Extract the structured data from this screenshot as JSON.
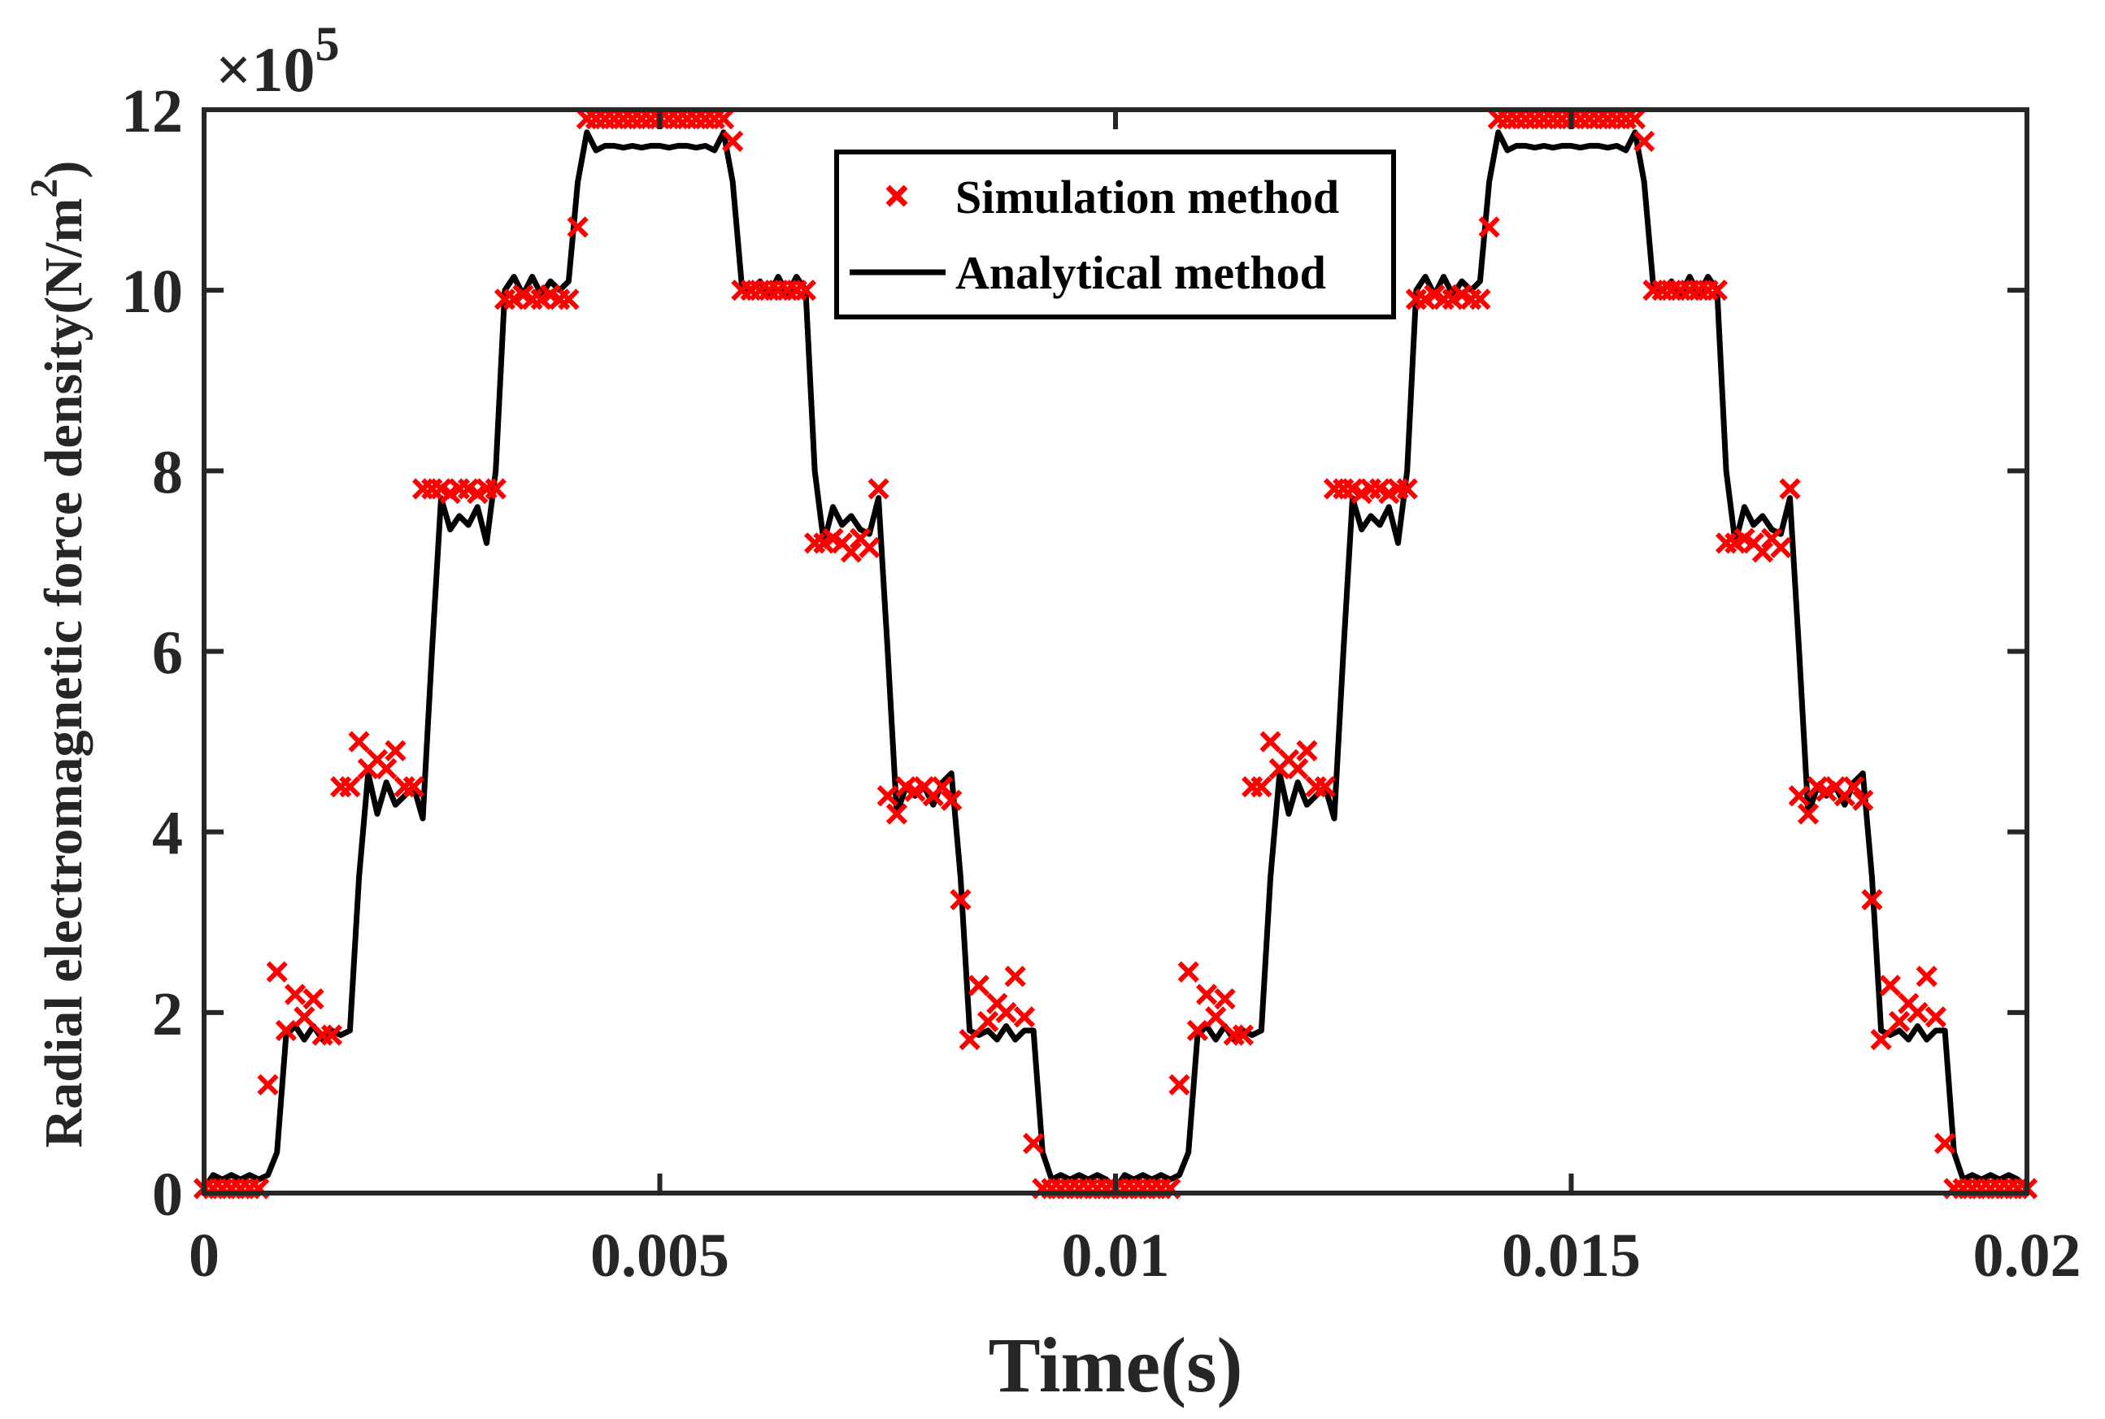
{
  "chart_data": {
    "type": "line",
    "title": "",
    "xlabel": "Time(s)",
    "ylabel": "Radial electromagnetic force density(N/m",
    "ylabel_sup": "2",
    "ylabel_close": ")",
    "y_multiplier_label": "×10",
    "y_multiplier_exp": "5",
    "xlim": [
      0,
      0.02
    ],
    "ylim": [
      0,
      12
    ],
    "x_ticks": [
      "0",
      "0.005",
      "0.01",
      "0.015",
      "0.02"
    ],
    "x_tick_values": [
      0,
      0.005,
      0.01,
      0.015,
      0.02
    ],
    "y_ticks": [
      "0",
      "2",
      "4",
      "6",
      "8",
      "10",
      "12"
    ],
    "y_tick_values": [
      0,
      2,
      4,
      6,
      8,
      10,
      12
    ],
    "grid": false,
    "legend_position": "top-center",
    "period": 0.01,
    "t_step": 0.0001,
    "series": [
      {
        "name": "Simulation method",
        "style": "x-markers",
        "color": "#ff0000",
        "period_values": [
          0.05,
          0.05,
          0.05,
          0.05,
          0.05,
          0.05,
          0.05,
          1.2,
          2.45,
          1.8,
          2.2,
          1.95,
          2.15,
          1.75,
          1.75,
          4.5,
          4.5,
          5.0,
          4.7,
          4.8,
          4.7,
          4.9,
          4.5,
          4.5,
          7.8,
          7.8,
          7.8,
          7.75,
          7.8,
          7.8,
          7.75,
          7.8,
          7.8,
          9.9,
          9.9,
          9.95,
          9.9,
          9.9,
          9.95,
          9.9,
          9.9,
          10.7,
          11.9,
          11.9,
          11.9,
          11.9,
          11.9,
          11.9,
          11.9,
          11.9,
          11.9,
          11.9,
          11.9,
          11.9,
          11.9,
          11.9,
          11.9,
          11.9,
          11.65,
          10.0,
          10.0,
          10.0,
          10.0,
          10.0,
          10.0,
          10.0,
          10.0,
          7.2,
          7.2,
          7.25,
          7.2,
          7.1,
          7.25,
          7.15,
          7.8,
          4.4,
          4.2,
          4.5,
          4.45,
          4.5,
          4.4,
          4.5,
          4.35,
          3.25,
          1.7,
          2.3,
          1.9,
          2.1,
          2.0,
          2.4,
          1.95,
          0.55,
          0.05,
          0.05,
          0.05,
          0.05,
          0.05,
          0.05,
          0.05,
          0.05
        ],
        "end_value": 0.05
      },
      {
        "name": "Analytical method",
        "style": "solid-line",
        "color": "#000000",
        "period_values": [
          0.05,
          0.2,
          0.15,
          0.2,
          0.15,
          0.2,
          0.15,
          0.2,
          0.45,
          1.75,
          1.85,
          1.7,
          1.85,
          1.7,
          1.8,
          1.75,
          1.8,
          3.5,
          4.65,
          4.2,
          4.55,
          4.3,
          4.4,
          4.5,
          4.15,
          6.0,
          7.7,
          7.35,
          7.5,
          7.4,
          7.6,
          7.2,
          8.0,
          10.0,
          10.15,
          9.95,
          10.15,
          9.95,
          10.1,
          10.0,
          10.1,
          11.2,
          11.75,
          11.55,
          11.6,
          11.6,
          11.58,
          11.6,
          11.58,
          11.6,
          11.6,
          11.58,
          11.6,
          11.6,
          11.58,
          11.6,
          11.55,
          11.75,
          11.2,
          10.05,
          10.0,
          10.1,
          9.95,
          10.15,
          9.95,
          10.15,
          10.0,
          8.0,
          7.2,
          7.6,
          7.4,
          7.5,
          7.35,
          7.3,
          7.7,
          6.0,
          4.2,
          4.5,
          4.4,
          4.5,
          4.3,
          4.55,
          4.65,
          3.5,
          1.8,
          1.75,
          1.8,
          1.7,
          1.85,
          1.7,
          1.8,
          1.8,
          0.45,
          0.15,
          0.2,
          0.15,
          0.2,
          0.15,
          0.2,
          0.15
        ],
        "end_value": 0.05
      }
    ]
  }
}
